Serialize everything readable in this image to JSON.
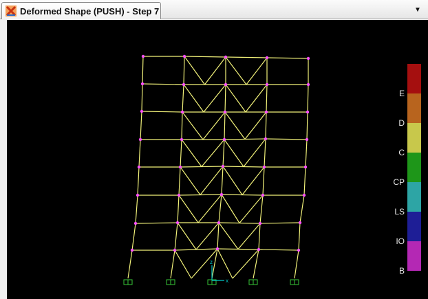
{
  "window": {
    "title": "Deformed Shape (PUSH) - Step 7",
    "icon": "deformed-shape-icon",
    "menu": "chevron-down-icon"
  },
  "frame": {
    "background_color": "#000000",
    "member_color": "#f2f27a",
    "joint_color": "#ff50ff",
    "support_color": "#37c837",
    "stories": 8,
    "bays": 4,
    "braced_bays": "middle two bays, chevron (V) bracing"
  },
  "axis": {
    "x_label": "x",
    "y_label": "z",
    "color": "#00c8c8"
  },
  "hinge_legend": {
    "items": [
      {
        "label": "E",
        "color": "#a50f0f"
      },
      {
        "label": "D",
        "color": "#b8641e"
      },
      {
        "label": "C",
        "color": "#c8c84b"
      },
      {
        "label": "CP",
        "color": "#1e9619"
      },
      {
        "label": "LS",
        "color": "#2da5a5"
      },
      {
        "label": "IO",
        "color": "#1e1e96"
      },
      {
        "label": "B",
        "color": "#b428b4"
      }
    ]
  }
}
